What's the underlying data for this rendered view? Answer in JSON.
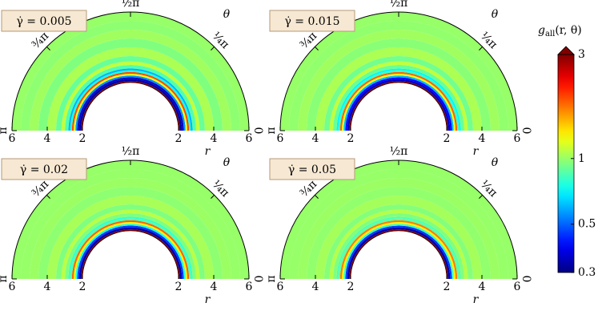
{
  "chart_data": {
    "type": "polar-heatmap",
    "r_label": "r",
    "theta_label": "θ",
    "rlim": [
      2,
      6
    ],
    "rticks": [
      2,
      4,
      6
    ],
    "theta_ticks": [
      {
        "value": 0,
        "label": "0"
      },
      {
        "value": 0.25,
        "label": "¼π"
      },
      {
        "value": 0.5,
        "label": "½π"
      },
      {
        "value": 0.75,
        "label": "¾π"
      },
      {
        "value": 1,
        "label": "π"
      }
    ],
    "bins": [
      2.0,
      2.08,
      2.2,
      2.3,
      2.4,
      2.5,
      2.6,
      2.7,
      2.8,
      3.0,
      3.2,
      3.5,
      4.0,
      4.5,
      5.0,
      5.5,
      6.0
    ],
    "panels": [
      {
        "title": "γ̇ = 0.005",
        "values": [
          3,
          0.33,
          0.35,
          0.55,
          1.2,
          1.9,
          0.75,
          0.6,
          0.85,
          1.1,
          0.9,
          1.05,
          0.95,
          1.02,
          0.98,
          1.0
        ]
      },
      {
        "title": "γ̇ = 0.015",
        "values": [
          3,
          0.35,
          0.4,
          0.6,
          1.2,
          1.8,
          0.8,
          0.7,
          0.9,
          1.1,
          0.92,
          1.05,
          0.97,
          1.02,
          0.99,
          1.0
        ]
      },
      {
        "title": "γ̇ = 0.02",
        "values": [
          3,
          0.33,
          0.45,
          0.75,
          1.3,
          1.8,
          0.85,
          0.8,
          0.95,
          1.08,
          0.95,
          1.04,
          0.98,
          1.01,
          1.0,
          1.0
        ]
      },
      {
        "title": "γ̇ = 0.05",
        "values": [
          3,
          0.33,
          0.45,
          0.8,
          1.3,
          1.7,
          0.88,
          0.85,
          0.95,
          1.07,
          0.96,
          1.03,
          0.99,
          1.01,
          1.0,
          1.0
        ]
      }
    ],
    "colorbar": {
      "label_symbol": "g",
      "label_subscript": "all",
      "label_args": "(r, θ)",
      "clim": [
        0.3,
        3
      ],
      "log": true,
      "ticks": [
        0.3,
        0.5,
        1,
        3
      ],
      "colormap": "jet"
    }
  }
}
